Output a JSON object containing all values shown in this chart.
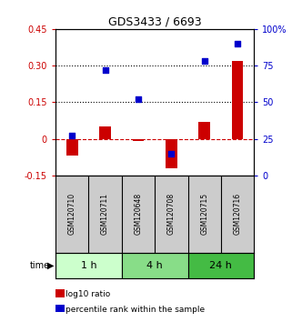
{
  "title": "GDS3433 / 6693",
  "samples": [
    "GSM120710",
    "GSM120711",
    "GSM120648",
    "GSM120708",
    "GSM120715",
    "GSM120716"
  ],
  "log10_ratio": [
    -0.07,
    0.05,
    -0.01,
    -0.12,
    0.07,
    0.32
  ],
  "percentile_rank": [
    27,
    72,
    52,
    15,
    78,
    90
  ],
  "ylim_left": [
    -0.15,
    0.45
  ],
  "ylim_right": [
    0,
    100
  ],
  "yticks_left": [
    -0.15,
    0,
    0.15,
    0.3,
    0.45
  ],
  "yticks_right": [
    0,
    25,
    50,
    75,
    100
  ],
  "ytick_labels_left": [
    "-0.15",
    "0",
    "0.15",
    "0.30",
    "0.45"
  ],
  "ytick_labels_right": [
    "0",
    "25",
    "50",
    "75",
    "100%"
  ],
  "hlines_dotted": [
    0.15,
    0.3
  ],
  "bar_color": "#cc0000",
  "square_color": "#0000cc",
  "zero_line_color": "#cc0000",
  "time_groups": [
    {
      "label": "1 h",
      "indices": [
        0,
        1
      ],
      "color": "#ccffcc"
    },
    {
      "label": "4 h",
      "indices": [
        2,
        3
      ],
      "color": "#88dd88"
    },
    {
      "label": "24 h",
      "indices": [
        4,
        5
      ],
      "color": "#44bb44"
    }
  ],
  "legend_bar_label": "log10 ratio",
  "legend_sq_label": "percentile rank within the sample",
  "bar_width": 0.35,
  "square_size": 18,
  "time_label": "time",
  "fig_bg": "#ffffff",
  "sample_bg": "#cccccc"
}
